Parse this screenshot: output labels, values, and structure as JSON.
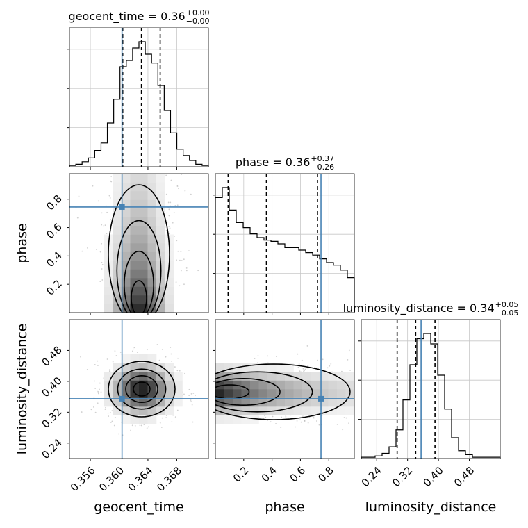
{
  "chart_data": {
    "type": "corner",
    "parameters": [
      "geocent_time",
      "phase",
      "luminosity_distance"
    ],
    "truths": {
      "geocent_time": 0.3604,
      "phase": 0.745,
      "luminosity_distance": 0.355
    },
    "truth_color": "#4682b4",
    "axis_ranges": {
      "geocent_time": [
        0.3531,
        0.3724
      ],
      "phase": [
        0.0,
        0.98
      ],
      "luminosity_distance": [
        0.2,
        0.56
      ]
    },
    "ticks": {
      "geocent_time": {
        "values": [
          0.356,
          0.36,
          0.364,
          0.368
        ],
        "labels": [
          "0.356",
          "0.360",
          "0.364",
          "0.368"
        ]
      },
      "phase": {
        "values": [
          0.2,
          0.4,
          0.6,
          0.8
        ],
        "labels": [
          "0.2",
          "0.4",
          "0.6",
          "0.8"
        ]
      },
      "luminosity_distance": {
        "values": [
          0.24,
          0.32,
          0.4,
          0.48
        ],
        "labels": [
          "0.24",
          "0.32",
          "0.40",
          "0.48"
        ]
      }
    },
    "diag_titles": [
      {
        "param": "geocent_time",
        "text": "geocent_time = 0.36",
        "sup": "+0.00",
        "sub": "−0.00",
        "quantiles": [
          0.3605,
          0.3631,
          0.3657
        ]
      },
      {
        "param": "phase",
        "text": "phase = 0.36",
        "sup": "+0.37",
        "sub": "−0.26",
        "quantiles": [
          0.09,
          0.36,
          0.72
        ]
      },
      {
        "param": "luminosity_distance",
        "text": "luminosity_distance = 0.34",
        "sup": "+0.05",
        "sub": "−0.05",
        "quantiles": [
          0.293,
          0.341,
          0.391
        ]
      }
    ],
    "histograms": [
      {
        "param": "geocent_time",
        "counts": [
          1,
          2,
          4,
          7,
          13,
          19,
          35,
          54,
          80,
          85,
          95,
          100,
          90,
          83,
          65,
          45,
          27,
          14,
          9,
          5,
          2,
          1
        ]
      },
      {
        "param": "phase",
        "counts": [
          92,
          100,
          82,
          72,
          68,
          63,
          60,
          58,
          57,
          55,
          52,
          52,
          50,
          48,
          46,
          43,
          40,
          38,
          34,
          28
        ]
      },
      {
        "param": "luminosity_distance",
        "counts": [
          1,
          1,
          2,
          4,
          9,
          22,
          45,
          72,
          92,
          96,
          88,
          64,
          38,
          16,
          6,
          3,
          1,
          1,
          1,
          1
        ]
      }
    ],
    "contour_levels": 4,
    "grid": true,
    "legend": "none"
  }
}
